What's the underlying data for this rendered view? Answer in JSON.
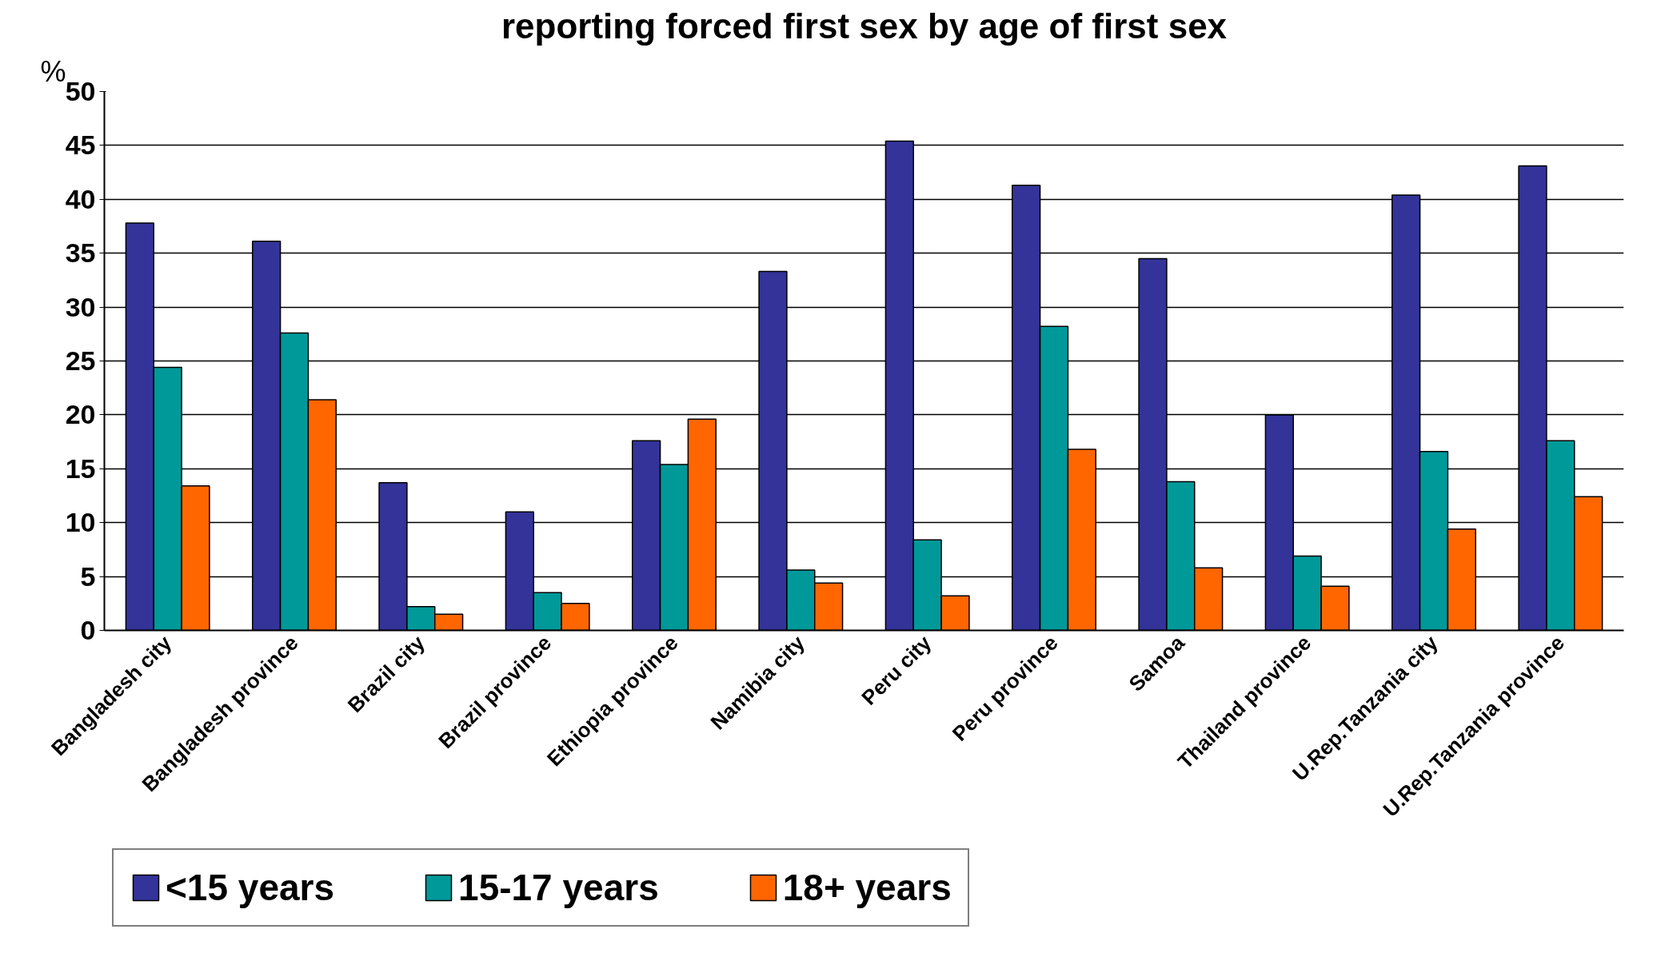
{
  "chart_data": {
    "type": "bar",
    "title": "reporting forced first sex by age of first sex",
    "ylabel": "%",
    "categories": [
      "Bangladesh city",
      "Bangladesh province",
      "Brazil city",
      "Brazil province",
      "Ethiopia province",
      "Namibia city",
      "Peru city",
      "Peru province",
      "Samoa",
      "Thailand province",
      "U.Rep.Tanzania city",
      "U.Rep.Tanzania province"
    ],
    "series": [
      {
        "name": "<15 years",
        "color": "#333399",
        "values": [
          37.8,
          36.1,
          13.7,
          11.0,
          17.6,
          33.3,
          45.4,
          41.3,
          34.5,
          20.0,
          40.4,
          43.1
        ]
      },
      {
        "name": "15-17 years",
        "color": "#009999",
        "values": [
          24.4,
          27.6,
          2.2,
          3.5,
          15.4,
          5.6,
          8.4,
          28.2,
          13.8,
          6.9,
          16.6,
          17.6
        ]
      },
      {
        "name": "18+ years",
        "color": "#ff6600",
        "values": [
          13.4,
          21.4,
          1.5,
          2.5,
          19.6,
          4.4,
          3.2,
          16.8,
          5.8,
          4.1,
          9.4,
          12.4
        ]
      }
    ],
    "ylim": [
      0,
      50
    ],
    "yticks": [
      0,
      5,
      10,
      15,
      20,
      25,
      30,
      35,
      40,
      45,
      50
    ],
    "grid": "y",
    "legend": "bottom"
  }
}
